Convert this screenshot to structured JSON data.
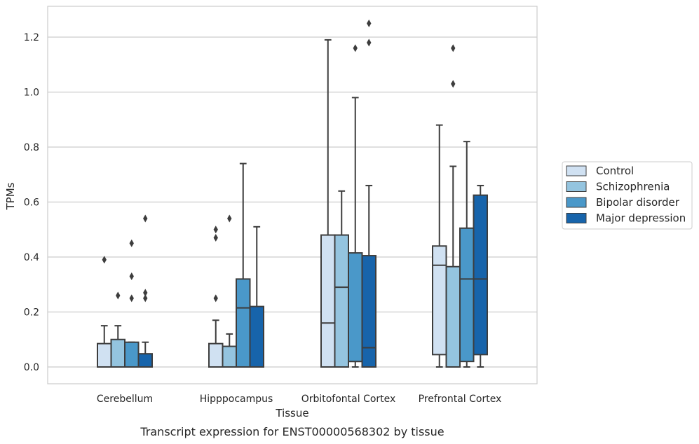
{
  "chart_data": {
    "type": "box",
    "xlabel": "Tissue",
    "ylabel": "TPMs",
    "caption": "Transcript expression for ENST00000568302 by tissue",
    "ylim": [
      -0.06,
      1.32
    ],
    "yticks": [
      0.0,
      0.2,
      0.4,
      0.6,
      0.8,
      1.0,
      1.2
    ],
    "ytick_labels": [
      "0.0",
      "0.2",
      "0.4",
      "0.6",
      "0.8",
      "1.0",
      "1.2"
    ],
    "grid": "horizontal",
    "legend_position": "right",
    "categories": [
      "Cerebellum",
      "Hipppocampus",
      "Orbitofontal Cortex",
      "Prefrontal Cortex"
    ],
    "series": [
      {
        "name": "Control",
        "color": "#d0e1f2",
        "boxes": [
          {
            "q1": 0.0,
            "median": 0.0,
            "q3": 0.085,
            "whisker_low": 0.0,
            "whisker_high": 0.15,
            "outliers": [
              0.39
            ]
          },
          {
            "q1": 0.0,
            "median": 0.0,
            "q3": 0.085,
            "whisker_low": 0.0,
            "whisker_high": 0.17,
            "outliers": [
              0.25,
              0.47,
              0.5
            ]
          },
          {
            "q1": 0.0,
            "median": 0.16,
            "q3": 0.48,
            "whisker_low": 0.0,
            "whisker_high": 1.19,
            "outliers": []
          },
          {
            "q1": 0.045,
            "median": 0.37,
            "q3": 0.44,
            "whisker_low": 0.0,
            "whisker_high": 0.88,
            "outliers": []
          }
        ]
      },
      {
        "name": "Schizophrenia",
        "color": "#94c4df",
        "boxes": [
          {
            "q1": 0.0,
            "median": 0.0,
            "q3": 0.1,
            "whisker_low": 0.0,
            "whisker_high": 0.15,
            "outliers": [
              0.26
            ]
          },
          {
            "q1": 0.0,
            "median": 0.0,
            "q3": 0.075,
            "whisker_low": 0.0,
            "whisker_high": 0.12,
            "outliers": [
              0.54
            ]
          },
          {
            "q1": 0.0,
            "median": 0.29,
            "q3": 0.48,
            "whisker_low": 0.0,
            "whisker_high": 0.64,
            "outliers": []
          },
          {
            "q1": 0.0,
            "median": 0.0,
            "q3": 0.365,
            "whisker_low": 0.0,
            "whisker_high": 0.73,
            "outliers": [
              1.03,
              1.16
            ]
          }
        ]
      },
      {
        "name": "Bipolar disorder",
        "color": "#4a98c9",
        "boxes": [
          {
            "q1": 0.0,
            "median": 0.0,
            "q3": 0.09,
            "whisker_low": 0.0,
            "whisker_high": 0.09,
            "outliers": [
              0.25,
              0.33,
              0.45
            ]
          },
          {
            "q1": 0.0,
            "median": 0.215,
            "q3": 0.32,
            "whisker_low": 0.0,
            "whisker_high": 0.74,
            "outliers": []
          },
          {
            "q1": 0.02,
            "median": 0.02,
            "q3": 0.415,
            "whisker_low": 0.0,
            "whisker_high": 0.98,
            "outliers": [
              1.16
            ]
          },
          {
            "q1": 0.02,
            "median": 0.32,
            "q3": 0.505,
            "whisker_low": 0.0,
            "whisker_high": 0.82,
            "outliers": []
          }
        ]
      },
      {
        "name": "Major depression",
        "color": "#1764ab",
        "boxes": [
          {
            "q1": 0.0,
            "median": 0.0,
            "q3": 0.048,
            "whisker_low": 0.0,
            "whisker_high": 0.09,
            "outliers": [
              0.25,
              0.27,
              0.54
            ]
          },
          {
            "q1": 0.0,
            "median": 0.0,
            "q3": 0.22,
            "whisker_low": 0.0,
            "whisker_high": 0.51,
            "outliers": []
          },
          {
            "q1": 0.0,
            "median": 0.07,
            "q3": 0.405,
            "whisker_low": 0.0,
            "whisker_high": 0.66,
            "outliers": [
              1.18,
              1.25
            ]
          },
          {
            "q1": 0.045,
            "median": 0.32,
            "q3": 0.625,
            "whisker_low": 0.0,
            "whisker_high": 0.66,
            "outliers": []
          }
        ]
      }
    ]
  }
}
